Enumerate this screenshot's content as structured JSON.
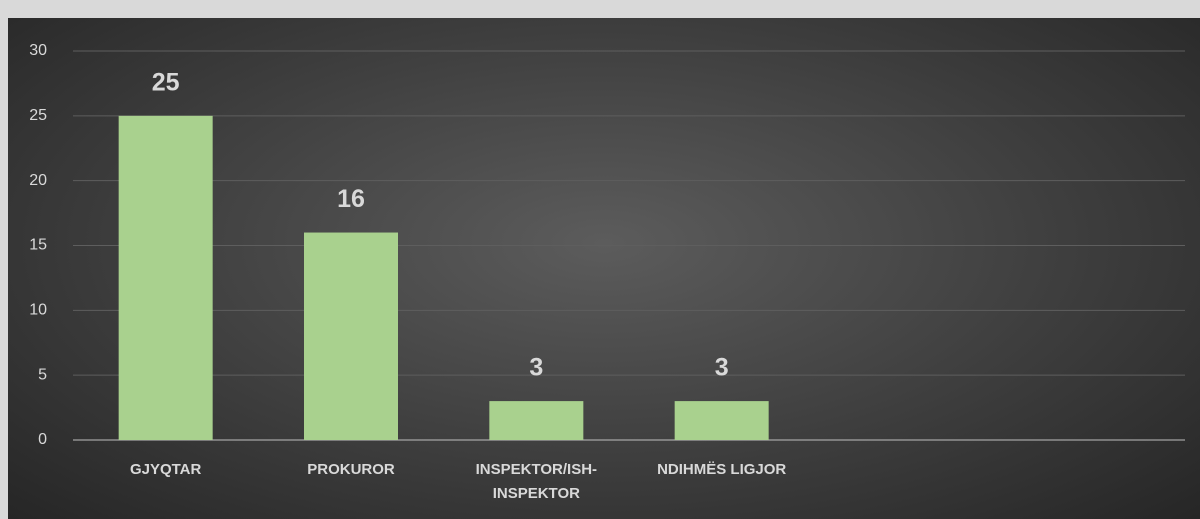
{
  "chart_data": {
    "type": "bar",
    "categories": [
      "GJYQTAR",
      "PROKUROR",
      "INSPEKTOR/ISH-INSPEKTOR",
      "NDIHMËS LIGJOR",
      null,
      null
    ],
    "values": [
      25,
      16,
      3,
      3,
      null,
      null
    ],
    "color": "#a9d18e",
    "ylim": [
      0,
      30
    ],
    "yticks": [
      0,
      5,
      10,
      15,
      20,
      25,
      30
    ],
    "grid": true
  }
}
